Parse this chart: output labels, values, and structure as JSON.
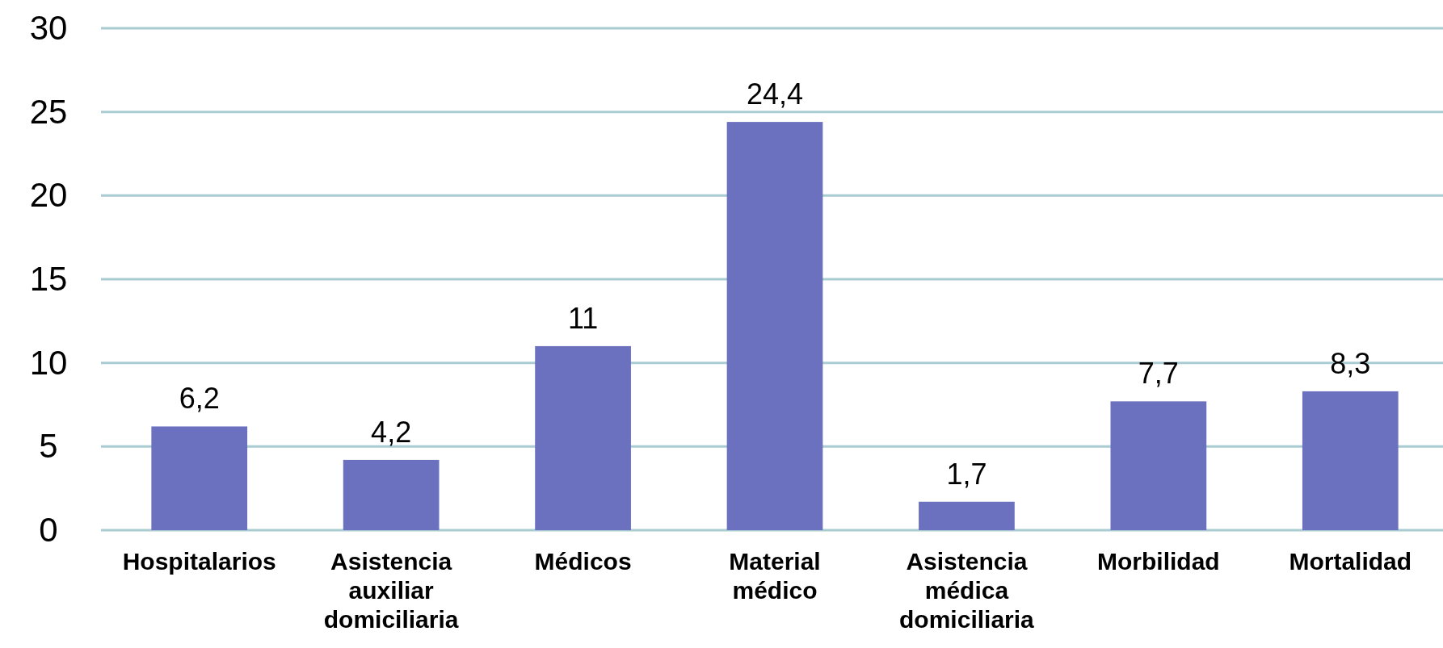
{
  "chart_data": {
    "type": "bar",
    "categories": [
      "Hospitalarios",
      "Asistencia auxiliar domiciliaria",
      "Médicos",
      "Material médico",
      "Asistencia médica domiciliaria",
      "Morbilidad",
      "Mortalidad"
    ],
    "values": [
      6.2,
      4.2,
      11,
      24.4,
      1.7,
      7.7,
      8.3
    ],
    "value_labels": [
      "6,2",
      "4,2",
      "11",
      "24,4",
      "1,7",
      "7,7",
      "8,3"
    ],
    "color": "#6b70bf",
    "ylim": [
      0,
      30
    ],
    "yticks": [
      0,
      5,
      10,
      15,
      20,
      25,
      30
    ],
    "grid": "y"
  }
}
